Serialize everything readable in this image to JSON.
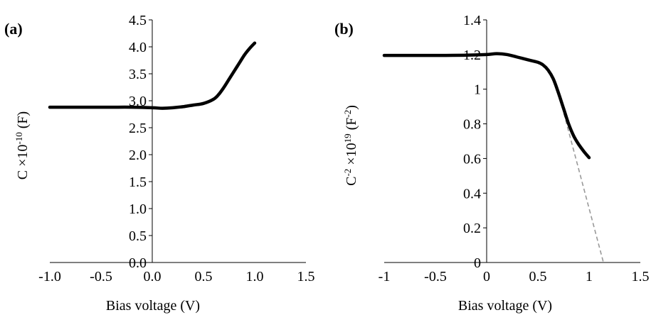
{
  "chart_data": [
    {
      "type": "line",
      "panel_label": "(a)",
      "xlabel": "Bias voltage (V)",
      "ylabel": "C ×10-10 (F)",
      "ylabel_parts": {
        "base": "C ×10",
        "sup": "-10",
        "unit": " (F)"
      },
      "xlim": [
        -1.0,
        1.5
      ],
      "ylim": [
        0.0,
        4.5
      ],
      "x_ticks": [
        "-1.0",
        "-0.5",
        "0.0",
        "0.5",
        "1.0",
        "1.5"
      ],
      "x_tick_values": [
        -1.0,
        -0.5,
        0.0,
        0.5,
        1.0,
        1.5
      ],
      "y_ticks": [
        "0.0",
        "0.5",
        "1.0",
        "1.5",
        "2.0",
        "2.5",
        "3.0",
        "3.5",
        "4.0",
        "4.5"
      ],
      "y_tick_values": [
        0.0,
        0.5,
        1.0,
        1.5,
        2.0,
        2.5,
        3.0,
        3.5,
        4.0,
        4.5
      ],
      "grid": false,
      "series": [
        {
          "color": "#000000",
          "x": [
            -1.0,
            -0.8,
            -0.6,
            -0.4,
            -0.2,
            0.0,
            0.1,
            0.2,
            0.3,
            0.4,
            0.5,
            0.6,
            0.65,
            0.7,
            0.75,
            0.8,
            0.85,
            0.9,
            0.95,
            1.0
          ],
          "y": [
            2.88,
            2.88,
            2.88,
            2.88,
            2.88,
            2.87,
            2.86,
            2.87,
            2.89,
            2.92,
            2.95,
            3.03,
            3.12,
            3.25,
            3.4,
            3.55,
            3.7,
            3.85,
            3.97,
            4.07
          ]
        }
      ]
    },
    {
      "type": "line",
      "panel_label": "(b)",
      "xlabel": "Bias voltage  (V)",
      "ylabel": "C-2 ×1019 (F-2)",
      "ylabel_parts": {
        "base": "C",
        "sup1": "-2",
        "mid": " ×10",
        "sup2": "19",
        "unit": " (F",
        "sup3": "-2",
        "end": ")"
      },
      "xlim": [
        -1,
        1.5
      ],
      "ylim": [
        0,
        1.4
      ],
      "x_ticks": [
        "-1",
        "-0.5",
        "0",
        "0.5",
        "1",
        "1.5"
      ],
      "x_tick_values": [
        -1,
        -0.5,
        0,
        0.5,
        1,
        1.5
      ],
      "y_ticks": [
        "0",
        "0.2",
        "0.4",
        "0.6",
        "0.8",
        "1",
        "1.2",
        "1.4"
      ],
      "y_tick_values": [
        0,
        0.2,
        0.4,
        0.6,
        0.8,
        1.0,
        1.2,
        1.4
      ],
      "grid": false,
      "series": [
        {
          "color": "#000000",
          "x": [
            -1.0,
            -0.8,
            -0.6,
            -0.4,
            -0.2,
            0.0,
            0.1,
            0.2,
            0.3,
            0.4,
            0.5,
            0.55,
            0.6,
            0.65,
            0.7,
            0.75,
            0.8,
            0.85,
            0.9,
            0.95,
            1.0
          ],
          "y": [
            1.195,
            1.195,
            1.195,
            1.195,
            1.196,
            1.2,
            1.205,
            1.2,
            1.185,
            1.17,
            1.155,
            1.14,
            1.11,
            1.06,
            0.98,
            0.89,
            0.8,
            0.73,
            0.68,
            0.64,
            0.605
          ]
        }
      ],
      "fit_line": {
        "color": "#999999",
        "dash": true,
        "x": [
          0.7,
          1.14
        ],
        "y": [
          0.98,
          0.0
        ]
      }
    }
  ]
}
